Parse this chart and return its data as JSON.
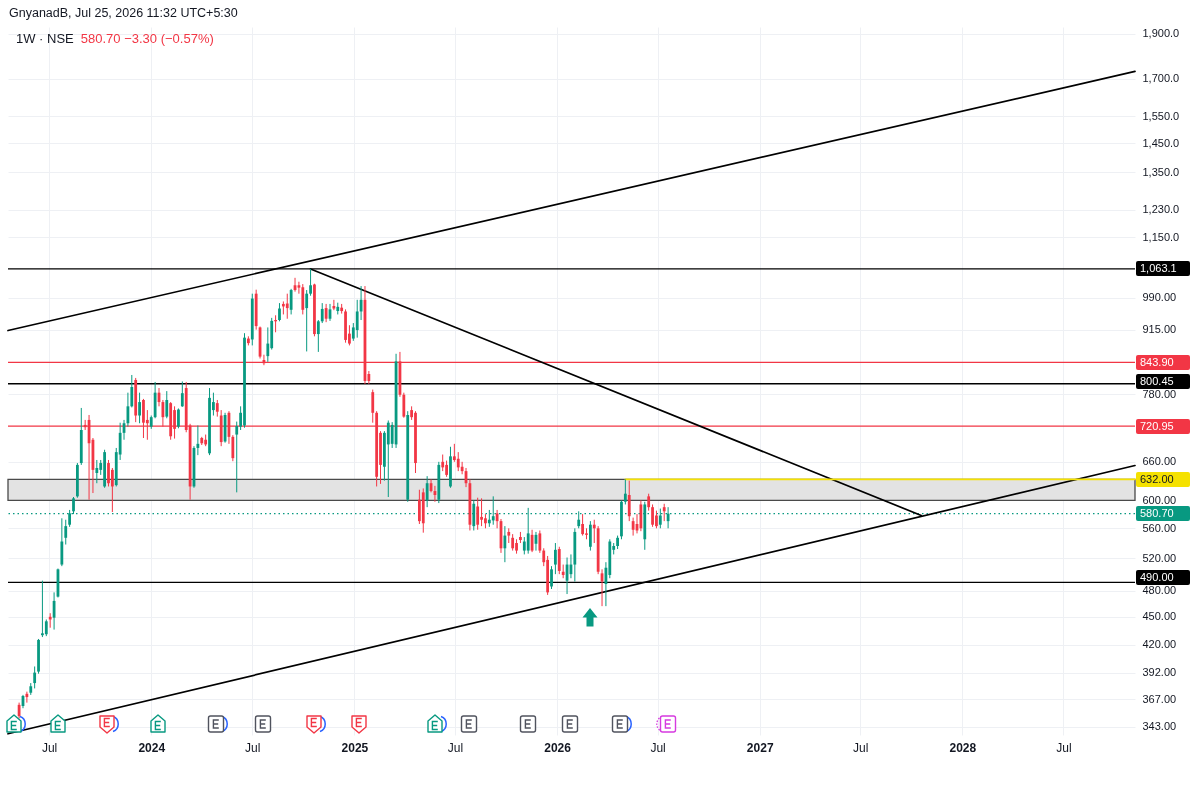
{
  "chart_data": {
    "type": "candlestick",
    "title": "1W · NSE",
    "subtitle": "580.70 −3.30 (−0.57%)",
    "annotations": [
      "GnyanadB, Jul 25, 2026 11:32 UTC+5:30",
      {
        "text": "632.00",
        "x": "2028-11-07",
        "y": 632
      }
    ],
    "x": [
      "2023-05-08",
      "2023-05-15",
      "2023-05-22",
      "2023-05-29",
      "2023-06-05",
      "2023-06-12",
      "2023-06-19",
      "2023-06-26",
      "2023-07-03",
      "2023-07-10",
      "2023-07-17",
      "2023-07-24",
      "2023-07-31",
      "2023-08-07",
      "2023-08-14",
      "2023-08-21",
      "2023-08-28",
      "2023-09-04",
      "2023-09-11",
      "2023-09-18",
      "2023-09-25",
      "2023-10-02",
      "2023-10-09",
      "2023-10-16",
      "2023-10-23",
      "2023-10-30",
      "2023-11-06",
      "2023-11-13",
      "2023-11-20",
      "2023-11-27",
      "2023-12-04",
      "2023-12-11",
      "2023-12-18",
      "2023-12-25",
      "2024-01-01",
      "2024-01-08",
      "2024-01-15",
      "2024-01-22",
      "2024-01-29",
      "2024-02-05",
      "2024-02-12",
      "2024-02-19",
      "2024-02-26",
      "2024-03-04",
      "2024-03-11",
      "2024-03-18",
      "2024-03-25",
      "2024-04-01",
      "2024-04-08",
      "2024-04-15",
      "2024-04-22",
      "2024-04-29",
      "2024-05-06",
      "2024-05-13",
      "2024-05-20",
      "2024-05-27",
      "2024-06-03",
      "2024-06-10",
      "2024-06-17",
      "2024-06-24",
      "2024-07-01",
      "2024-07-08",
      "2024-07-15",
      "2024-07-22",
      "2024-07-29",
      "2024-08-05",
      "2024-08-12",
      "2024-08-19",
      "2024-08-26",
      "2024-09-02",
      "2024-09-09",
      "2024-09-16",
      "2024-09-23",
      "2024-09-30",
      "2024-10-07",
      "2024-10-14",
      "2024-10-21",
      "2024-10-28",
      "2024-11-04",
      "2024-11-11",
      "2024-11-18",
      "2024-11-25",
      "2024-12-02",
      "2024-12-09",
      "2024-12-16",
      "2024-12-23",
      "2024-12-30",
      "2025-01-06",
      "2025-01-13",
      "2025-01-20",
      "2025-01-27",
      "2025-02-03",
      "2025-02-10",
      "2025-02-17",
      "2025-02-24",
      "2025-03-03",
      "2025-03-10",
      "2025-03-17",
      "2025-03-24",
      "2025-03-31",
      "2025-04-07",
      "2025-04-14",
      "2025-04-21",
      "2025-04-28",
      "2025-05-05",
      "2025-05-12",
      "2025-05-19",
      "2025-05-26",
      "2025-06-02",
      "2025-06-09",
      "2025-06-16",
      "2025-06-23",
      "2025-06-30",
      "2025-07-07",
      "2025-07-14",
      "2025-07-21",
      "2025-07-28",
      "2025-08-04",
      "2025-08-11",
      "2025-08-18",
      "2025-08-25",
      "2025-09-01",
      "2025-09-08",
      "2025-09-15",
      "2025-09-22",
      "2025-09-29",
      "2025-10-06",
      "2025-10-13",
      "2025-10-20",
      "2025-10-27",
      "2025-11-03",
      "2025-11-10",
      "2025-11-17",
      "2025-11-24",
      "2025-12-01",
      "2025-12-08",
      "2025-12-15",
      "2025-12-22",
      "2025-12-29",
      "2026-01-05",
      "2026-01-12",
      "2026-01-19",
      "2026-01-26",
      "2026-02-02",
      "2026-02-09",
      "2026-02-16",
      "2026-02-23",
      "2026-03-02",
      "2026-03-09",
      "2026-03-16",
      "2026-03-23",
      "2026-03-30",
      "2026-04-06",
      "2026-04-13",
      "2026-04-20",
      "2026-04-27",
      "2026-05-04",
      "2026-05-11",
      "2026-05-18",
      "2026-05-25",
      "2026-06-01",
      "2026-06-08",
      "2026-06-15",
      "2026-06-22",
      "2026-06-29",
      "2026-07-06",
      "2026-07-13",
      "2026-07-20"
    ],
    "ohlc": [
      [
        362,
        364,
        350,
        352
      ],
      [
        361,
        371,
        359,
        370
      ],
      [
        372,
        374,
        364,
        369
      ],
      [
        373,
        382,
        371,
        379
      ],
      [
        382,
        398,
        377,
        392
      ],
      [
        393,
        426,
        391,
        425
      ],
      [
        430,
        492,
        428,
        432
      ],
      [
        431,
        447,
        429,
        445
      ],
      [
        450,
        454,
        438,
        447
      ],
      [
        449,
        478,
        436,
        468
      ],
      [
        473,
        507,
        472,
        506
      ],
      [
        512,
        574,
        510,
        542
      ],
      [
        547,
        572,
        538,
        563
      ],
      [
        565,
        586,
        562,
        581
      ],
      [
        584,
        605,
        580,
        603
      ],
      [
        606,
        658,
        604,
        655
      ],
      [
        658,
        754,
        655,
        714
      ],
      [
        723,
        732,
        714,
        719
      ],
      [
        732,
        741,
        601,
        691
      ],
      [
        697,
        700,
        611,
        647
      ],
      [
        642,
        663,
        626,
        650
      ],
      [
        647,
        663,
        639,
        658
      ],
      [
        621,
        680,
        619,
        676
      ],
      [
        658,
        663,
        621,
        626
      ],
      [
        647,
        650,
        583,
        621
      ],
      [
        623,
        683,
        621,
        676
      ],
      [
        672,
        727,
        663,
        709
      ],
      [
        709,
        732,
        697,
        726
      ],
      [
        726,
        783,
        720,
        757
      ],
      [
        757,
        818,
        755,
        794
      ],
      [
        808,
        812,
        728,
        740
      ],
      [
        740,
        783,
        726,
        765
      ],
      [
        769,
        771,
        700,
        727
      ],
      [
        732,
        750,
        697,
        726
      ],
      [
        720,
        740,
        716,
        737
      ],
      [
        737,
        804,
        735,
        783
      ],
      [
        783,
        792,
        757,
        765
      ],
      [
        765,
        769,
        720,
        737
      ],
      [
        738,
        786,
        735,
        769
      ],
      [
        763,
        765,
        697,
        703
      ],
      [
        750,
        757,
        699,
        716
      ],
      [
        720,
        753,
        717,
        751
      ],
      [
        757,
        805,
        756,
        782
      ],
      [
        792,
        804,
        710,
        714
      ],
      [
        722,
        725,
        601,
        621
      ],
      [
        621,
        686,
        619,
        683
      ],
      [
        683,
        722,
        671,
        690
      ],
      [
        700,
        702,
        688,
        691
      ],
      [
        697,
        706,
        686,
        689
      ],
      [
        674,
        792,
        671,
        773
      ],
      [
        750,
        783,
        740,
        765
      ],
      [
        763,
        769,
        738,
        747
      ],
      [
        740,
        750,
        686,
        693
      ],
      [
        694,
        745,
        692,
        741
      ],
      [
        745,
        748,
        690,
        702
      ],
      [
        702,
        705,
        661,
        666
      ],
      [
        706,
        729,
        612,
        721
      ],
      [
        720,
        757,
        714,
        745
      ],
      [
        722,
        907,
        718,
        897
      ],
      [
        895,
        900,
        880,
        885
      ],
      [
        893,
        1000,
        880,
        988
      ],
      [
        1000,
        1010,
        915,
        923
      ],
      [
        920,
        922,
        852,
        856
      ],
      [
        849,
        860,
        838,
        842
      ],
      [
        857,
        920,
        845,
        884
      ],
      [
        874,
        942,
        871,
        935
      ],
      [
        937,
        948,
        909,
        934
      ],
      [
        937,
        977,
        934,
        964
      ],
      [
        975,
        981,
        950,
        969
      ],
      [
        976,
        1000,
        940,
        965
      ],
      [
        961,
        1012,
        950,
        1009
      ],
      [
        1021,
        1040,
        1005,
        1009
      ],
      [
        1021,
        1030,
        1000,
        1015
      ],
      [
        1016,
        1024,
        950,
        961
      ],
      [
        965,
        1009,
        867,
        1000
      ],
      [
        1000,
        1063.1,
        995,
        1021
      ],
      [
        1023,
        1025,
        900,
        905
      ],
      [
        905,
        937,
        866,
        934
      ],
      [
        934,
        977,
        930,
        963
      ],
      [
        965,
        975,
        932,
        940
      ],
      [
        940,
        975,
        935,
        962
      ],
      [
        970,
        985,
        960,
        964
      ],
      [
        958,
        978,
        950,
        968
      ],
      [
        966,
        975,
        952,
        958
      ],
      [
        957,
        962,
        886,
        892
      ],
      [
        906,
        925,
        880,
        884
      ],
      [
        895,
        930,
        890,
        920
      ],
      [
        914,
        985,
        897,
        957
      ],
      [
        957,
        1019,
        937,
        985
      ],
      [
        985,
        1019,
        800,
        806
      ],
      [
        820,
        826,
        800,
        806
      ],
      [
        784,
        789,
        727,
        745
      ],
      [
        745,
        748,
        621,
        636
      ],
      [
        709,
        712,
        625,
        655
      ],
      [
        652,
        712,
        630,
        709
      ],
      [
        689,
        731,
        605,
        727
      ],
      [
        690,
        728,
        683,
        723
      ],
      [
        689,
        862,
        683,
        846
      ],
      [
        846,
        866,
        775,
        779
      ],
      [
        779,
        783,
        736,
        738
      ],
      [
        601,
        748,
        598,
        741
      ],
      [
        750,
        757,
        732,
        737
      ],
      [
        745,
        748,
        642,
        658
      ],
      [
        601,
        616,
        566,
        570
      ],
      [
        612,
        618,
        554,
        567
      ],
      [
        600,
        637,
        590,
        626
      ],
      [
        626,
        632,
        612,
        614
      ],
      [
        614,
        622,
        598,
        608
      ],
      [
        601,
        660,
        596,
        655
      ],
      [
        660,
        672,
        645,
        651
      ],
      [
        655,
        662,
        636,
        639
      ],
      [
        621,
        685,
        619,
        669
      ],
      [
        669,
        690,
        660,
        663
      ],
      [
        665,
        676,
        645,
        651
      ],
      [
        652,
        660,
        640,
        645
      ],
      [
        645,
        650,
        620,
        626
      ],
      [
        626,
        632,
        557,
        565
      ],
      [
        563,
        600,
        557,
        595
      ],
      [
        591,
        604,
        558,
        565
      ],
      [
        576,
        603,
        563,
        572
      ],
      [
        574,
        580,
        560,
        567
      ],
      [
        567,
        586,
        562,
        572
      ],
      [
        571,
        606,
        565,
        577
      ],
      [
        581,
        586,
        560,
        570
      ],
      [
        570,
        573,
        527,
        533
      ],
      [
        533,
        563,
        515,
        550
      ],
      [
        555,
        560,
        540,
        550
      ],
      [
        547,
        552,
        530,
        533
      ],
      [
        540,
        545,
        526,
        530
      ],
      [
        548,
        555,
        540,
        544
      ],
      [
        530,
        548,
        525,
        542
      ],
      [
        530,
        589,
        526,
        553
      ],
      [
        551,
        558,
        528,
        530
      ],
      [
        539,
        555,
        530,
        551
      ],
      [
        553,
        557,
        527,
        530
      ],
      [
        530,
        533,
        510,
        515
      ],
      [
        518,
        523,
        475,
        478
      ],
      [
        485,
        510,
        482,
        506
      ],
      [
        512,
        540,
        500,
        531
      ],
      [
        532,
        535,
        500,
        504
      ],
      [
        503,
        512,
        495,
        499
      ],
      [
        492,
        521,
        476,
        512
      ],
      [
        500,
        525,
        495,
        512
      ],
      [
        512,
        560,
        491,
        555
      ],
      [
        563,
        584,
        560,
        572
      ],
      [
        566,
        580,
        550,
        552
      ],
      [
        553,
        560,
        545,
        551
      ],
      [
        535,
        570,
        530,
        565
      ],
      [
        565,
        572,
        540,
        560
      ],
      [
        560,
        563,
        500,
        503
      ],
      [
        501,
        506,
        462,
        491
      ],
      [
        488,
        515,
        462,
        508
      ],
      [
        499,
        545,
        495,
        542
      ],
      [
        531,
        540,
        525,
        536
      ],
      [
        536,
        550,
        532,
        547
      ],
      [
        549,
        600,
        545,
        598
      ],
      [
        598,
        632,
        594,
        610
      ],
      [
        608,
        630,
        570,
        577
      ],
      [
        570,
        575,
        550,
        558
      ],
      [
        566,
        580,
        553,
        557
      ],
      [
        594,
        600,
        556,
        560
      ],
      [
        545,
        598,
        531,
        594
      ],
      [
        606,
        610,
        585,
        590
      ],
      [
        590,
        594,
        562,
        565
      ],
      [
        578,
        585,
        560,
        563
      ],
      [
        565,
        588,
        560,
        578
      ],
      [
        590,
        595,
        570,
        584
      ],
      [
        570,
        590,
        560,
        580.7
      ]
    ],
    "colors": [
      "#f23645",
      "#089981",
      "#f23645",
      "#089981",
      "#089981",
      "#089981",
      "#089981",
      "#089981",
      "#f23645",
      "#089981",
      "#089981",
      "#089981",
      "#089981",
      "#089981",
      "#089981",
      "#089981",
      "#089981",
      "#f23645",
      "#f23645",
      "#f23645",
      "#089981",
      "#089981",
      "#089981",
      "#f23645",
      "#f23645",
      "#089981",
      "#089981",
      "#089981",
      "#089981",
      "#089981",
      "#f23645",
      "#089981",
      "#f23645",
      "#f23645",
      "#089981",
      "#089981",
      "#f23645",
      "#f23645",
      "#089981",
      "#f23645",
      "#f23645",
      "#089981",
      "#089981",
      "#f23645",
      "#f23645",
      "#089981",
      "#089981",
      "#f23645",
      "#f23645",
      "#089981",
      "#089981",
      "#f23645",
      "#f23645",
      "#089981",
      "#f23645",
      "#f23645",
      "#089981",
      "#089981",
      "#089981",
      "#f23645",
      "#089981",
      "#f23645",
      "#f23645",
      "#f23645",
      "#089981",
      "#089981",
      "#f23645",
      "#089981",
      "#f23645",
      "#f23645",
      "#089981",
      "#f23645",
      "#f23645",
      "#f23645",
      "#089981",
      "#089981",
      "#f23645",
      "#089981",
      "#089981",
      "#f23645",
      "#089981",
      "#f23645",
      "#089981",
      "#f23645",
      "#f23645",
      "#f23645",
      "#089981",
      "#089981",
      "#089981",
      "#f23645",
      "#f23645",
      "#f23645",
      "#f23645",
      "#f23645",
      "#089981",
      "#089981",
      "#089981",
      "#089981",
      "#f23645",
      "#f23645",
      "#089981",
      "#f23645",
      "#f23645",
      "#f23645",
      "#f23645",
      "#089981",
      "#f23645",
      "#f23645",
      "#089981",
      "#f23645",
      "#f23645",
      "#089981",
      "#f23645",
      "#f23645",
      "#f23645",
      "#f23645",
      "#f23645",
      "#089981",
      "#f23645",
      "#f23645",
      "#f23645",
      "#089981",
      "#089981",
      "#f23645",
      "#f23645",
      "#089981",
      "#f23645",
      "#f23645",
      "#f23645",
      "#f23645",
      "#089981",
      "#089981",
      "#f23645",
      "#089981",
      "#f23645",
      "#f23645",
      "#f23645",
      "#089981",
      "#089981",
      "#f23645",
      "#f23645",
      "#089981",
      "#089981",
      "#089981",
      "#089981",
      "#f23645",
      "#f23645",
      "#089981",
      "#f23645",
      "#f23645",
      "#f23645",
      "#089981",
      "#089981",
      "#089981",
      "#089981",
      "#089981",
      "#089981",
      "#f23645",
      "#f23645",
      "#f23645",
      "#f23645",
      "#089981",
      "#f23645",
      "#f23645",
      "#f23645",
      "#089981",
      "#f23645",
      "#089981"
    ],
    "series": [
      {
        "type": "line",
        "x": [
          "2023-04-18",
          "2028-11-07"
        ],
        "values": [
          913,
          1732
        ],
        "color": "#000000"
      },
      {
        "type": "line",
        "x": [
          "2023-04-18",
          "2028-11-07"
        ],
        "values": [
          337,
          654
        ],
        "color": "#000000"
      },
      {
        "type": "line",
        "x": [
          "2024-10-14",
          "2027-10-19"
        ],
        "values": [
          1063.1,
          578
        ],
        "color": "#000000"
      },
      {
        "type": "line",
        "x": [
          "2026-05-04",
          "2028-11-07"
        ],
        "values": [
          632,
          632
        ],
        "color": "#f5e100"
      }
    ],
    "xlim": [
      "2023-04-18",
      "2028-11-07"
    ],
    "xticks": [
      {
        "value": "2023-07",
        "label": "Jul"
      },
      {
        "value": "2024",
        "label": "2024"
      },
      {
        "value": "2024-07",
        "label": "Jul"
      },
      {
        "value": "2025",
        "label": "2025"
      },
      {
        "value": "2025-07",
        "label": "Jul"
      },
      {
        "value": "2026",
        "label": "2026"
      },
      {
        "value": "2026-07",
        "label": "Jul"
      },
      {
        "value": "2027",
        "label": "2027"
      },
      {
        "value": "2027-07",
        "label": "Jul"
      },
      {
        "value": "2028",
        "label": "2028"
      },
      {
        "value": "2028-07",
        "label": "Jul"
      }
    ],
    "ylim": [
      336,
      1933
    ],
    "yticks": [
      {
        "value": 343,
        "label": "343.00"
      },
      {
        "value": 367,
        "label": "367.00"
      },
      {
        "value": 392,
        "label": "392.00"
      },
      {
        "value": 420,
        "label": "420.00"
      },
      {
        "value": 450,
        "label": "450.00"
      },
      {
        "value": 480,
        "label": "480.00"
      },
      {
        "value": 520,
        "label": "520.00"
      },
      {
        "value": 560,
        "label": "560.00"
      },
      {
        "value": 600,
        "label": "600.00"
      },
      {
        "value": 660,
        "label": "660.00"
      },
      {
        "value": 780,
        "label": "780.00"
      },
      {
        "value": 915,
        "label": "915.00"
      },
      {
        "value": 990,
        "label": "990.00"
      },
      {
        "value": 1150,
        "label": "1,150.0"
      },
      {
        "value": 1230,
        "label": "1,230.0"
      },
      {
        "value": 1350,
        "label": "1,350.0"
      },
      {
        "value": 1450,
        "label": "1,450.0"
      },
      {
        "value": 1550,
        "label": "1,550.0"
      },
      {
        "value": 1700,
        "label": "1,700.0"
      },
      {
        "value": 1900,
        "label": "1,900.0"
      }
    ],
    "log": true,
    "grid": true,
    "ref_lines": [
      {
        "axis": "y",
        "value": 1063.1,
        "label": "1,063.1",
        "color": "#000000"
      },
      {
        "axis": "y",
        "value": 843.9,
        "label": "843.90",
        "color": "#f23645"
      },
      {
        "axis": "y",
        "value": 800.45,
        "label": "800.45",
        "color": "#000000"
      },
      {
        "axis": "y",
        "value": 720.95,
        "label": "720.95",
        "color": "#f23645"
      },
      {
        "axis": "y",
        "value": 490,
        "label": "490.00",
        "color": "#000000"
      },
      {
        "axis": "y",
        "value": 580.7,
        "label": "580.70",
        "color": "#089981",
        "line_style": "dotted"
      }
    ],
    "bands": [
      {
        "axis": "y",
        "from": 600,
        "to": 632,
        "color": "#e3e3e3"
      }
    ]
  }
}
